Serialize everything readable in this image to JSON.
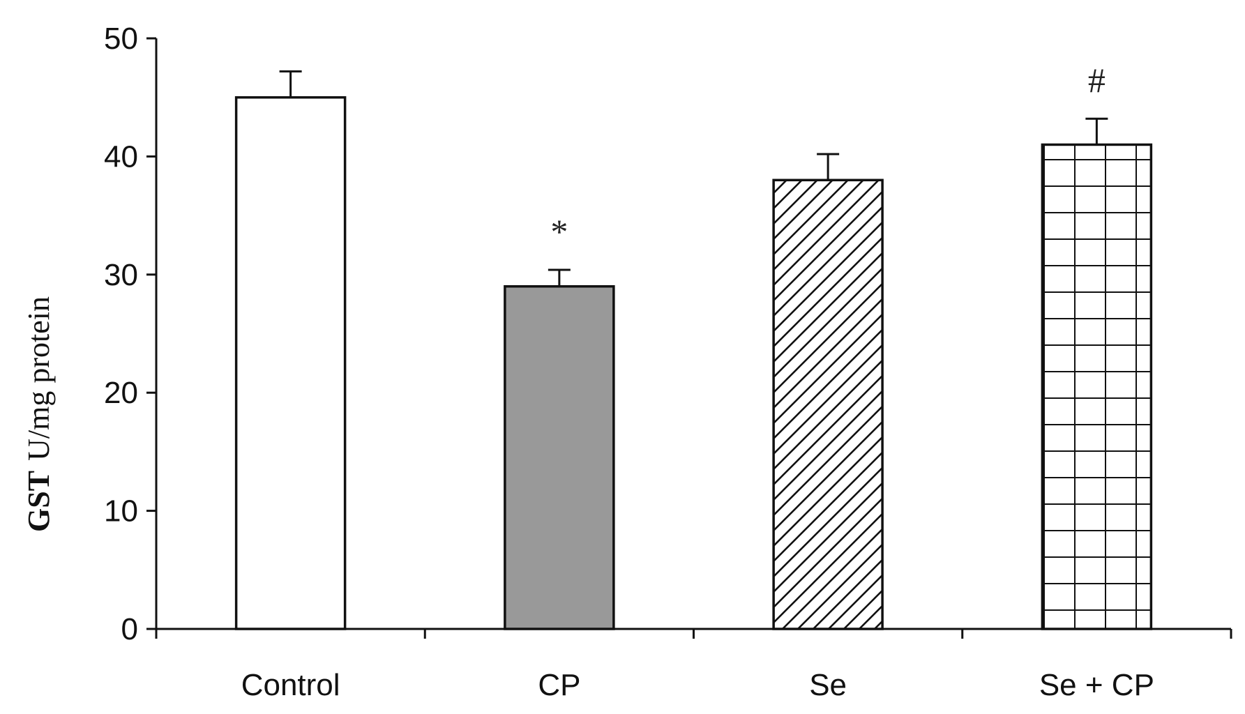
{
  "chart_data": {
    "type": "bar",
    "categories": [
      "Control",
      "CP",
      "Se",
      "Se + CP"
    ],
    "values": [
      45,
      29,
      38,
      41
    ],
    "errors": [
      2.2,
      1.4,
      2.2,
      2.2
    ],
    "annotations": [
      "",
      "*",
      "",
      "#"
    ],
    "fills": [
      "white",
      "gray",
      "diagonal-hatch",
      "grid-hatch"
    ],
    "ylabel_bold": "GST",
    "ylabel_rest": "U/mg protein",
    "xlabel": "",
    "title": "",
    "ylim": [
      0,
      50
    ],
    "yticks": [
      "0",
      "10",
      "20",
      "30",
      "40",
      "50"
    ],
    "grid": false,
    "legend": "none"
  },
  "colors": {
    "gray_fill": "#999999",
    "stroke": "#111111",
    "background": "#ffffff"
  }
}
